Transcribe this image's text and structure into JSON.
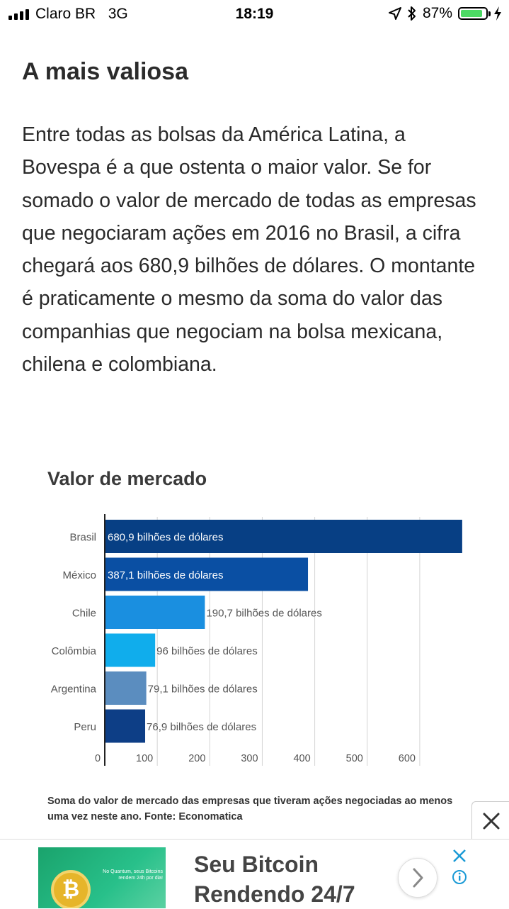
{
  "status_bar": {
    "carrier": "Claro BR",
    "network": "3G",
    "time": "18:19",
    "battery": "87%",
    "battery_level": 0.87
  },
  "article": {
    "title": "A mais valiosa",
    "paragraph": "Entre todas as bolsas da América Latina, a Bovespa é a que ostenta o maior valor. Se for somado o valor de mercado de todas as empresas que negociaram ações em 2016 no Brasil, a cifra chegará aos 680,9 bilhões de dólares. O montante é praticamente o mesmo da soma do valor das companhias que negociam na bolsa mexicana, chilena e colombiana."
  },
  "chart_data": {
    "type": "bar",
    "orientation": "horizontal",
    "title": "Valor de mercado",
    "categories": [
      "Brasil",
      "México",
      "Chile",
      "Colômbia",
      "Argentina",
      "Peru"
    ],
    "values": [
      680.9,
      387.1,
      190.7,
      96,
      79.1,
      76.9
    ],
    "data_labels": [
      "680,9 bilhões de dólares",
      "387,1 bilhões de dólares",
      "190,7 bilhões de dólares",
      "96 bilhões de dólares",
      "79,1 bilhões de dólares",
      "76,9 bilhões de dólares"
    ],
    "colors": [
      "#073f84",
      "#0a4fa3",
      "#1a8fe0",
      "#10adec",
      "#5b8dbf",
      "#0d3e86"
    ],
    "label_inside": [
      true,
      true,
      false,
      false,
      false,
      false
    ],
    "xticks": [
      "0",
      "100",
      "200",
      "300",
      "400",
      "500",
      "600"
    ],
    "xlim": [
      0,
      680.9
    ],
    "grid": true,
    "caption": "Soma do valor de mercado das empresas que tiveram ações negociadas ao menos uma vez neste ano. Fonte: Economatica"
  },
  "ad": {
    "headline_line1": "Seu Bitcoin",
    "headline_line2": "Rendendo 24/7",
    "image_text": "No Quantum, seus Bitcoins rendem 24h por dia!",
    "coin_symbol": "₿",
    "accent_color": "#1aa36c"
  }
}
